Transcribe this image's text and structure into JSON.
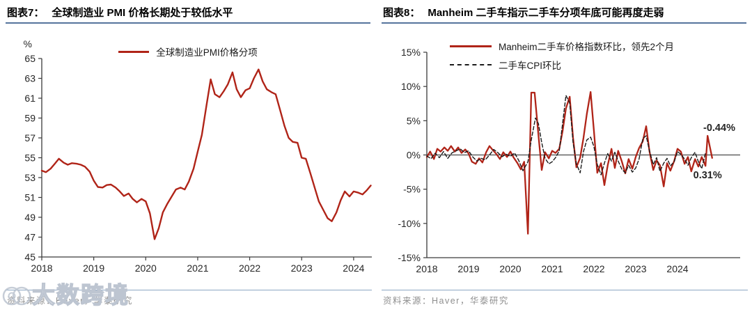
{
  "panels": [
    {
      "figure_label": "图表7：",
      "title": "全球制造业 PMI 价格长期处于较低水平",
      "source": "资料来源：Haver，华泰研究"
    },
    {
      "figure_label": "图表8：",
      "title": "Manheim 二手车指示二手车分项年底可能再度走弱",
      "source": "资料来源：Haver，华泰研究"
    }
  ],
  "chart_data": [
    {
      "type": "line",
      "title": "全球制造业 PMI 价格长期处于较低水平",
      "unit_label": "%",
      "legend_position": "top-center",
      "grid": false,
      "x_axis": {
        "min": 2018,
        "max": 2024.35,
        "ticks": [
          2018,
          2019,
          2020,
          2021,
          2022,
          2023,
          2024
        ]
      },
      "y_axis": {
        "min": 45,
        "max": 65,
        "ticks": [
          45,
          47,
          49,
          51,
          53,
          55,
          57,
          59,
          61,
          63,
          65
        ],
        "suffix": ""
      },
      "zero_line": false,
      "x_tick_marks": true,
      "series": [
        {
          "name": "全球制造业PMI价格分项",
          "color": "#b02418",
          "dash": null,
          "width": 2.4,
          "points": [
            [
              2018.0,
              53.7
            ],
            [
              2018.08,
              53.55
            ],
            [
              2018.17,
              53.9
            ],
            [
              2018.25,
              54.4
            ],
            [
              2018.33,
              54.9
            ],
            [
              2018.42,
              54.5
            ],
            [
              2018.5,
              54.3
            ],
            [
              2018.58,
              54.45
            ],
            [
              2018.67,
              54.4
            ],
            [
              2018.75,
              54.3
            ],
            [
              2018.83,
              54.1
            ],
            [
              2018.92,
              53.6
            ],
            [
              2019.0,
              52.7
            ],
            [
              2019.08,
              52.05
            ],
            [
              2019.17,
              52.0
            ],
            [
              2019.25,
              52.25
            ],
            [
              2019.33,
              52.3
            ],
            [
              2019.42,
              52.0
            ],
            [
              2019.5,
              51.6
            ],
            [
              2019.58,
              51.15
            ],
            [
              2019.67,
              51.4
            ],
            [
              2019.75,
              50.85
            ],
            [
              2019.83,
              50.5
            ],
            [
              2019.92,
              50.85
            ],
            [
              2020.0,
              50.6
            ],
            [
              2020.08,
              49.4
            ],
            [
              2020.17,
              46.8
            ],
            [
              2020.25,
              47.9
            ],
            [
              2020.33,
              49.5
            ],
            [
              2020.42,
              50.4
            ],
            [
              2020.5,
              51.1
            ],
            [
              2020.58,
              51.8
            ],
            [
              2020.67,
              52.0
            ],
            [
              2020.75,
              51.8
            ],
            [
              2020.83,
              52.6
            ],
            [
              2020.92,
              53.9
            ],
            [
              2021.0,
              55.6
            ],
            [
              2021.08,
              57.3
            ],
            [
              2021.17,
              60.3
            ],
            [
              2021.25,
              62.9
            ],
            [
              2021.33,
              61.4
            ],
            [
              2021.42,
              61.1
            ],
            [
              2021.5,
              61.7
            ],
            [
              2021.58,
              62.4
            ],
            [
              2021.67,
              63.6
            ],
            [
              2021.75,
              61.9
            ],
            [
              2021.83,
              61.1
            ],
            [
              2021.92,
              61.8
            ],
            [
              2022.0,
              62.0
            ],
            [
              2022.08,
              63.0
            ],
            [
              2022.17,
              63.9
            ],
            [
              2022.25,
              62.7
            ],
            [
              2022.33,
              61.9
            ],
            [
              2022.42,
              61.6
            ],
            [
              2022.5,
              61.4
            ],
            [
              2022.58,
              59.9
            ],
            [
              2022.67,
              58.2
            ],
            [
              2022.75,
              57.0
            ],
            [
              2022.83,
              56.6
            ],
            [
              2022.92,
              56.5
            ],
            [
              2023.0,
              55.0
            ],
            [
              2023.08,
              54.9
            ],
            [
              2023.17,
              53.4
            ],
            [
              2023.25,
              52.0
            ],
            [
              2023.33,
              50.6
            ],
            [
              2023.42,
              49.7
            ],
            [
              2023.5,
              48.9
            ],
            [
              2023.58,
              48.6
            ],
            [
              2023.67,
              49.5
            ],
            [
              2023.75,
              50.7
            ],
            [
              2023.83,
              51.6
            ],
            [
              2023.92,
              51.1
            ],
            [
              2024.0,
              51.6
            ],
            [
              2024.08,
              51.5
            ],
            [
              2024.17,
              51.3
            ],
            [
              2024.25,
              51.7
            ],
            [
              2024.33,
              52.2
            ]
          ]
        }
      ],
      "annotations": []
    },
    {
      "type": "line",
      "title": "Manheim 二手车指示二手车分项年底可能再度走弱",
      "unit_label": "",
      "legend_position": "top-left",
      "grid": false,
      "x_axis": {
        "min": 2018,
        "max": 2025.5,
        "ticks": [
          2018,
          2019,
          2020,
          2021,
          2022,
          2023,
          2024
        ]
      },
      "y_axis": {
        "min": -15,
        "max": 15,
        "ticks": [
          -15,
          -10,
          -5,
          0,
          5,
          10,
          15
        ],
        "suffix": "%"
      },
      "zero_line": true,
      "x_tick_marks": false,
      "series": [
        {
          "name": "Manheim二手车价格指数环比，领先2个月",
          "color": "#b02418",
          "dash": null,
          "width": 2.3,
          "points": [
            [
              2018.0,
              -0.3
            ],
            [
              2018.08,
              0.5
            ],
            [
              2018.17,
              -0.6
            ],
            [
              2018.25,
              0.9
            ],
            [
              2018.33,
              0.5
            ],
            [
              2018.42,
              1.1
            ],
            [
              2018.5,
              0.6
            ],
            [
              2018.58,
              1.3
            ],
            [
              2018.67,
              0.5
            ],
            [
              2018.75,
              1.1
            ],
            [
              2018.83,
              0.3
            ],
            [
              2018.92,
              0.8
            ],
            [
              2019.0,
              0.2
            ],
            [
              2019.08,
              -1.0
            ],
            [
              2019.17,
              -1.3
            ],
            [
              2019.25,
              -0.5
            ],
            [
              2019.33,
              -1.1
            ],
            [
              2019.42,
              0.4
            ],
            [
              2019.5,
              1.3
            ],
            [
              2019.58,
              0.7
            ],
            [
              2019.67,
              0.1
            ],
            [
              2019.75,
              -0.6
            ],
            [
              2019.83,
              0.4
            ],
            [
              2019.92,
              -0.3
            ],
            [
              2020.0,
              0.5
            ],
            [
              2020.08,
              -0.4
            ],
            [
              2020.17,
              -1.2
            ],
            [
              2020.25,
              -2.1
            ],
            [
              2020.33,
              -1.0
            ],
            [
              2020.42,
              -11.5
            ],
            [
              2020.5,
              9.1
            ],
            [
              2020.58,
              9.1
            ],
            [
              2020.67,
              3.0
            ],
            [
              2020.75,
              -2.2
            ],
            [
              2020.83,
              0.4
            ],
            [
              2020.92,
              -0.5
            ],
            [
              2021.0,
              0.6
            ],
            [
              2021.08,
              0.3
            ],
            [
              2021.17,
              0.9
            ],
            [
              2021.25,
              3.5
            ],
            [
              2021.33,
              6.8
            ],
            [
              2021.42,
              8.5
            ],
            [
              2021.5,
              2.5
            ],
            [
              2021.58,
              -1.8
            ],
            [
              2021.67,
              -0.4
            ],
            [
              2021.75,
              2.5
            ],
            [
              2021.83,
              6.0
            ],
            [
              2021.92,
              9.2
            ],
            [
              2022.0,
              3.5
            ],
            [
              2022.08,
              -2.6
            ],
            [
              2022.17,
              -1.2
            ],
            [
              2022.25,
              -4.4
            ],
            [
              2022.33,
              -1.5
            ],
            [
              2022.42,
              0.9
            ],
            [
              2022.5,
              -1.9
            ],
            [
              2022.58,
              0.6
            ],
            [
              2022.67,
              -1.0
            ],
            [
              2022.75,
              -2.7
            ],
            [
              2022.83,
              -0.6
            ],
            [
              2022.92,
              -2.0
            ],
            [
              2023.0,
              -0.3
            ],
            [
              2023.08,
              1.0
            ],
            [
              2023.17,
              2.0
            ],
            [
              2023.25,
              4.2
            ],
            [
              2023.33,
              0.5
            ],
            [
              2023.42,
              -2.2
            ],
            [
              2023.5,
              -0.8
            ],
            [
              2023.58,
              -1.5
            ],
            [
              2023.67,
              -4.6
            ],
            [
              2023.75,
              -1.2
            ],
            [
              2023.83,
              -2.3
            ],
            [
              2023.92,
              -0.9
            ],
            [
              2024.0,
              0.9
            ],
            [
              2024.08,
              0.5
            ],
            [
              2024.17,
              -1.3
            ],
            [
              2024.25,
              -0.3
            ],
            [
              2024.33,
              -2.4
            ],
            [
              2024.42,
              -0.6
            ],
            [
              2024.5,
              -1.7
            ],
            [
              2024.58,
              -0.3
            ],
            [
              2024.67,
              -1.6
            ],
            [
              2024.72,
              2.8
            ],
            [
              2024.83,
              -0.44
            ]
          ]
        },
        {
          "name": "二手车CPI环比",
          "color": "#1a1a1a",
          "dash": "5 3",
          "width": 1.4,
          "points": [
            [
              2018.0,
              -0.15
            ],
            [
              2018.1,
              -0.55
            ],
            [
              2018.2,
              0.25
            ],
            [
              2018.3,
              -0.4
            ],
            [
              2018.4,
              0.5
            ],
            [
              2018.5,
              -0.5
            ],
            [
              2018.6,
              0.3
            ],
            [
              2018.7,
              0.6
            ],
            [
              2018.8,
              0.9
            ],
            [
              2018.9,
              0.35
            ],
            [
              2019.0,
              0.6
            ],
            [
              2019.1,
              -0.3
            ],
            [
              2019.2,
              -0.9
            ],
            [
              2019.3,
              -0.5
            ],
            [
              2019.4,
              -0.7
            ],
            [
              2019.5,
              0.0
            ],
            [
              2019.6,
              0.8
            ],
            [
              2019.7,
              0.35
            ],
            [
              2019.8,
              -0.25
            ],
            [
              2019.9,
              0.1
            ],
            [
              2020.0,
              -0.2
            ],
            [
              2020.1,
              0.3
            ],
            [
              2020.2,
              -0.8
            ],
            [
              2020.3,
              -2.3
            ],
            [
              2020.42,
              -1.0
            ],
            [
              2020.5,
              2.2
            ],
            [
              2020.6,
              5.4
            ],
            [
              2020.67,
              4.6
            ],
            [
              2020.75,
              1.8
            ],
            [
              2020.83,
              -0.5
            ],
            [
              2020.92,
              -1.3
            ],
            [
              2021.0,
              -1.0
            ],
            [
              2021.08,
              -0.4
            ],
            [
              2021.17,
              0.6
            ],
            [
              2021.25,
              4.6
            ],
            [
              2021.33,
              8.7
            ],
            [
              2021.42,
              7.6
            ],
            [
              2021.5,
              1.8
            ],
            [
              2021.58,
              -1.3
            ],
            [
              2021.67,
              -2.6
            ],
            [
              2021.75,
              0.5
            ],
            [
              2021.83,
              2.2
            ],
            [
              2021.92,
              2.6
            ],
            [
              2022.0,
              1.2
            ],
            [
              2022.08,
              -1.4
            ],
            [
              2022.17,
              -2.9
            ],
            [
              2022.25,
              -1.2
            ],
            [
              2022.33,
              0.2
            ],
            [
              2022.42,
              -0.9
            ],
            [
              2022.5,
              0.4
            ],
            [
              2022.58,
              -0.9
            ],
            [
              2022.67,
              -2.1
            ],
            [
              2022.75,
              -2.6
            ],
            [
              2022.83,
              -1.5
            ],
            [
              2022.92,
              -2.5
            ],
            [
              2023.0,
              -1.9
            ],
            [
              2023.08,
              -0.6
            ],
            [
              2023.17,
              2.4
            ],
            [
              2023.25,
              2.8
            ],
            [
              2023.33,
              0.6
            ],
            [
              2023.42,
              -1.4
            ],
            [
              2023.5,
              -0.4
            ],
            [
              2023.58,
              -2.4
            ],
            [
              2023.67,
              -1.2
            ],
            [
              2023.75,
              -0.5
            ],
            [
              2023.83,
              -1.6
            ],
            [
              2023.92,
              -1.0
            ],
            [
              2024.0,
              0.5
            ],
            [
              2024.08,
              0.1
            ],
            [
              2024.17,
              -0.6
            ],
            [
              2024.25,
              -1.5
            ],
            [
              2024.33,
              -0.4
            ],
            [
              2024.42,
              0.4
            ],
            [
              2024.5,
              -1.0
            ],
            [
              2024.58,
              -2.0
            ],
            [
              2024.67,
              0.31
            ]
          ]
        }
      ],
      "annotations": [
        {
          "text": "-0.44%",
          "x": 2025.0,
          "y": 3.5,
          "color": "#b02418"
        },
        {
          "text": "0.31%",
          "x": 2024.72,
          "y": -3.4,
          "color": "#1a1a1a"
        }
      ]
    }
  ],
  "watermark": {
    "text": "大数跨境"
  },
  "colors": {
    "accent_red": "#b02418",
    "title_rule": "#55749c",
    "source_rule": "#8ba6c3",
    "source_text": "#8f8f8f",
    "axis": "#3a3a3a",
    "zero_line": "#4a4a4a"
  }
}
